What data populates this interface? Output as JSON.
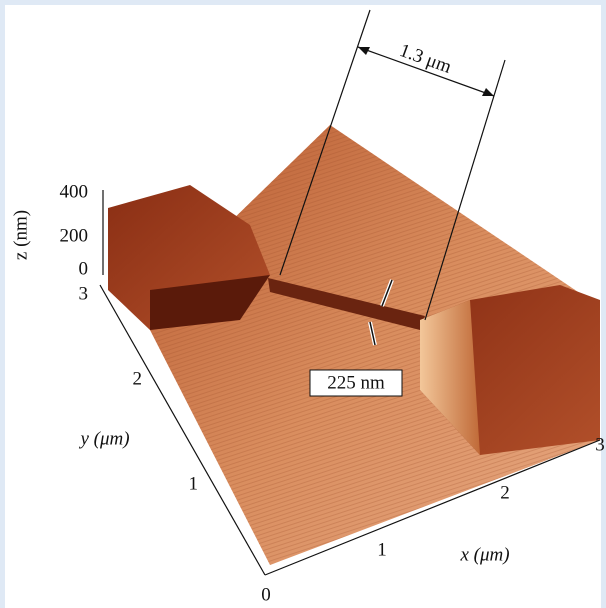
{
  "z_axis": {
    "label": "z (nm)",
    "ticks": [
      "400",
      "200",
      "0"
    ]
  },
  "y_axis": {
    "label": "y (μm)",
    "ticks": [
      "3",
      "2",
      "1"
    ]
  },
  "x_axis": {
    "label": "x (μm)",
    "ticks": [
      "0",
      "1",
      "2",
      "3"
    ]
  },
  "annotations": {
    "gap_spacing": "1.3 μm",
    "wire_width": "225 nm"
  }
}
